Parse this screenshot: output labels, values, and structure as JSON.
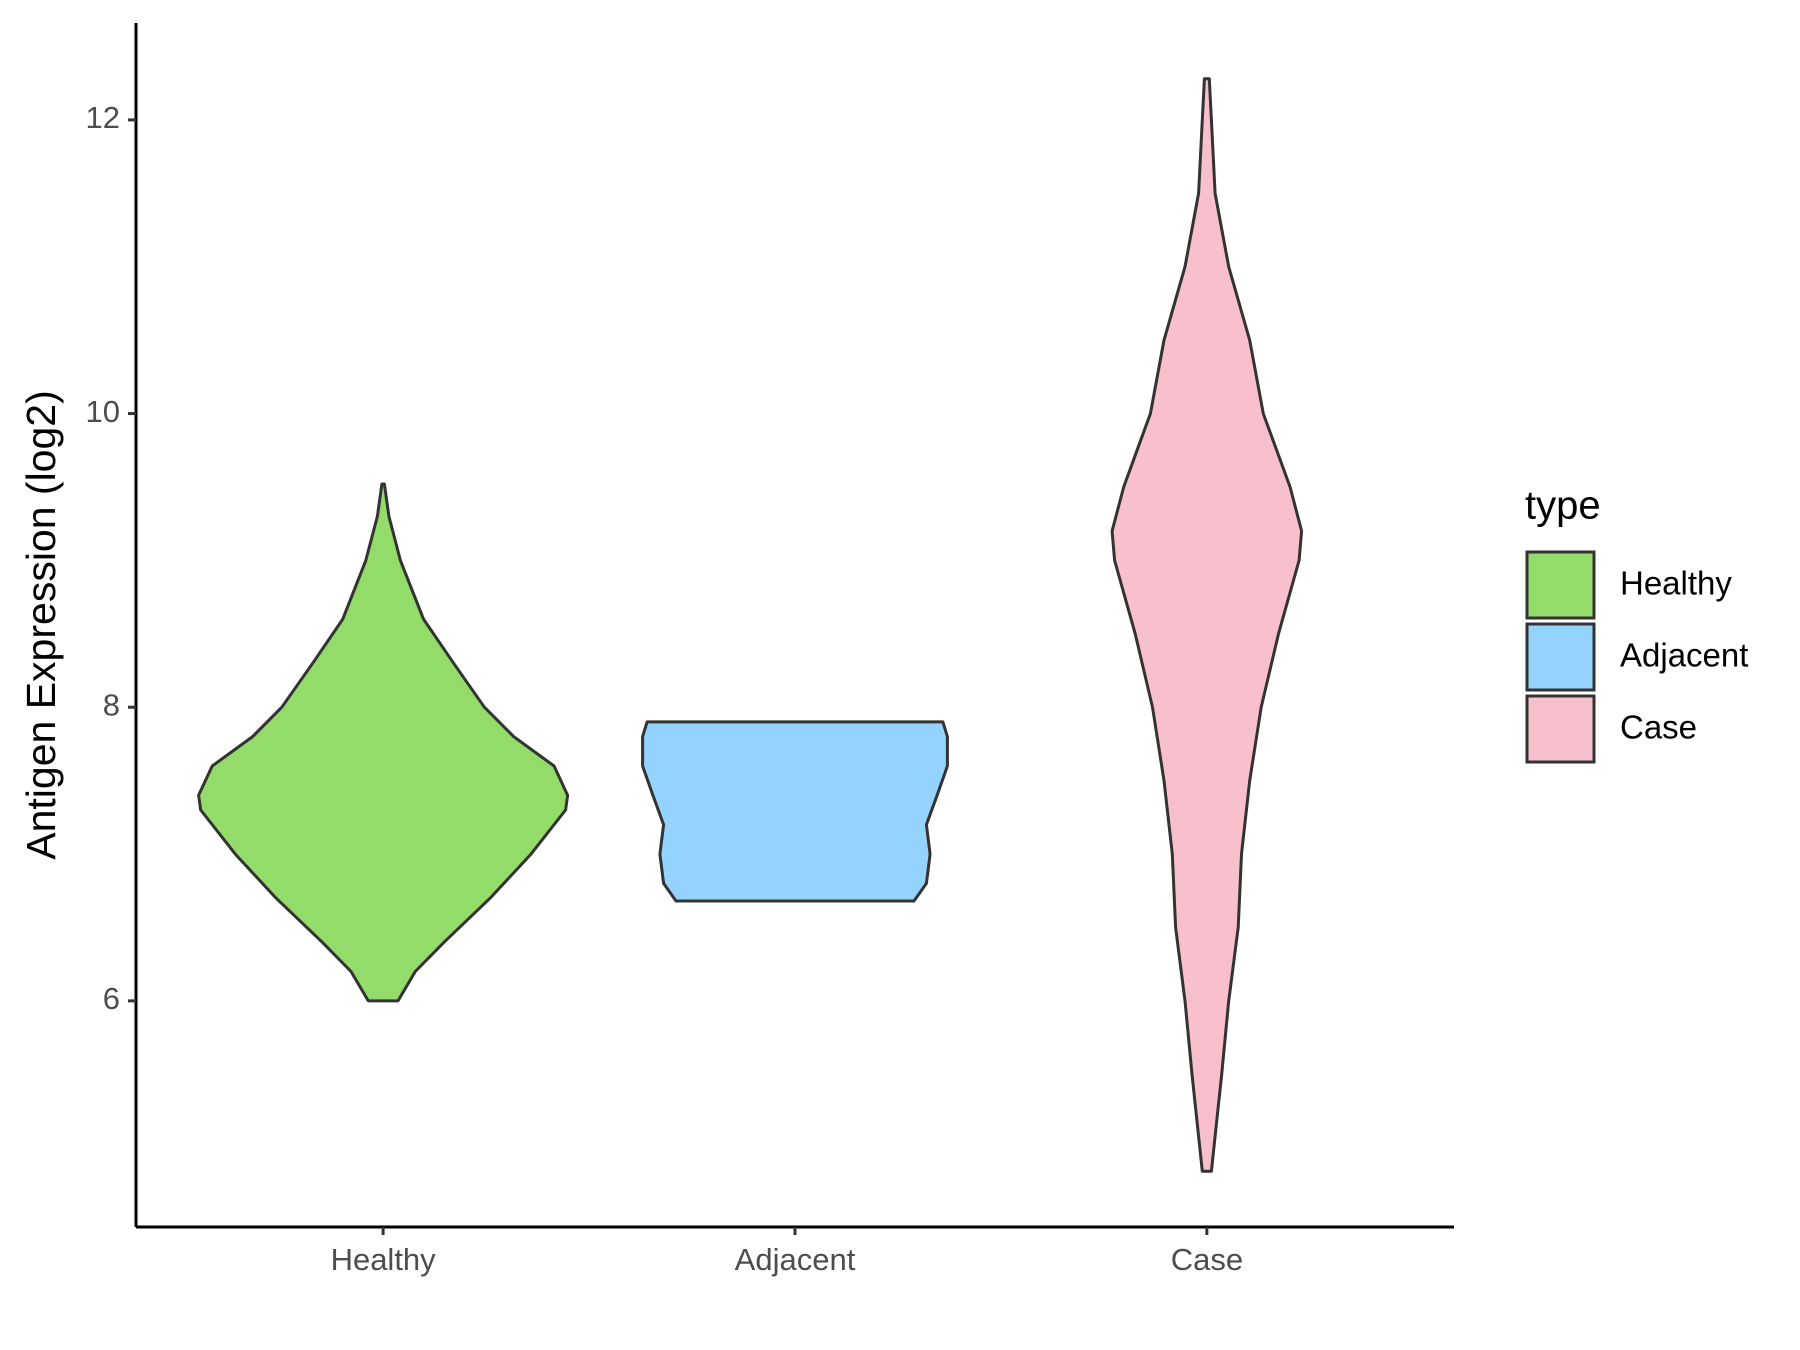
{
  "chart_data": {
    "type": "violin",
    "y_label": "Antigen Expression (log2)",
    "legend_title": "type",
    "categories": [
      "Healthy",
      "Adjacent",
      "Case"
    ],
    "series": [
      {
        "name": "Healthy",
        "color": "#93dc6a",
        "y": [
          6.0,
          6.2,
          6.4,
          6.7,
          7.0,
          7.3,
          7.4,
          7.6,
          7.8,
          8.0,
          8.3,
          8.6,
          9.0,
          9.3,
          9.52
        ],
        "width": [
          0.036,
          0.078,
          0.148,
          0.26,
          0.359,
          0.443,
          0.448,
          0.415,
          0.317,
          0.246,
          0.171,
          0.098,
          0.042,
          0.014,
          0.003
        ]
      },
      {
        "name": "Adjacent",
        "color": "#93d3fe",
        "y": [
          6.68,
          6.8,
          7.0,
          7.2,
          7.4,
          7.6,
          7.8,
          7.9
        ],
        "width": [
          0.289,
          0.319,
          0.328,
          0.319,
          0.345,
          0.37,
          0.37,
          0.359
        ]
      },
      {
        "name": "Case",
        "color": "#f7c0cc",
        "y": [
          4.84,
          5.5,
          6.0,
          6.5,
          7.0,
          7.5,
          8.0,
          8.5,
          9.0,
          9.2,
          9.5,
          10.0,
          10.5,
          11.0,
          11.5,
          12.0,
          12.28
        ],
        "width": [
          0.011,
          0.036,
          0.053,
          0.076,
          0.084,
          0.104,
          0.132,
          0.174,
          0.224,
          0.23,
          0.202,
          0.137,
          0.104,
          0.053,
          0.02,
          0.011,
          0.006
        ]
      }
    ],
    "ylim": [
      4.46,
      12.66
    ],
    "yticks": [
      6,
      8,
      10,
      12
    ]
  }
}
